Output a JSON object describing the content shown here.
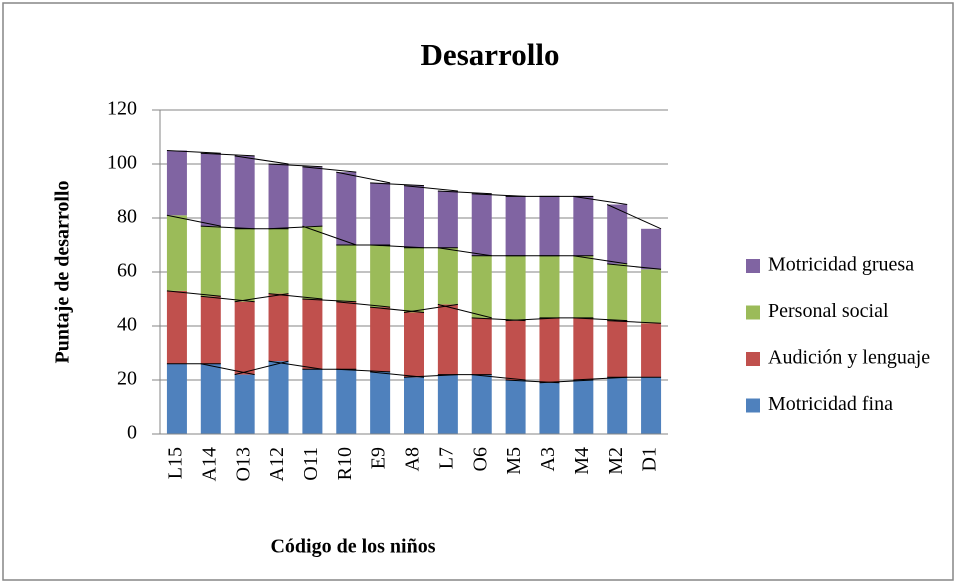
{
  "chart_data": {
    "type": "stacked_bar",
    "title": "Desarrollo",
    "x_label": "Código de los niños",
    "y_label": "Puntaje de desarrollo",
    "categories": [
      "L15",
      "A14",
      "O13",
      "A12",
      "O11",
      "R10",
      "E9",
      "A8",
      "L7",
      "O6",
      "M5",
      "A3",
      "M4",
      "M2",
      "D1"
    ],
    "series": [
      {
        "name": "Motricidad fina",
        "color": "#4f81bd",
        "values": [
          26,
          26,
          22,
          27,
          24,
          24,
          23,
          21,
          22,
          22,
          20,
          19,
          20,
          21,
          21
        ]
      },
      {
        "name": "Audición y lenguaje",
        "color": "#c0504d",
        "values": [
          27,
          25,
          27,
          25,
          26,
          25,
          24,
          24,
          26,
          21,
          22,
          24,
          23,
          21,
          20
        ]
      },
      {
        "name": "Personal social",
        "color": "#9bbb59",
        "values": [
          28,
          26,
          27,
          24,
          27,
          21,
          23,
          24,
          21,
          23,
          24,
          23,
          23,
          21,
          20
        ]
      },
      {
        "name": "Motricidad gruesa",
        "color": "#8064a2",
        "values": [
          24,
          27,
          27,
          24,
          22,
          27,
          23,
          23,
          21,
          23,
          22,
          22,
          22,
          22,
          15
        ]
      }
    ],
    "ylim": [
      0,
      120
    ],
    "yticks": [
      0,
      20,
      40,
      60,
      80,
      100,
      120
    ],
    "grid": true,
    "series_lines": true,
    "legend": "right"
  }
}
